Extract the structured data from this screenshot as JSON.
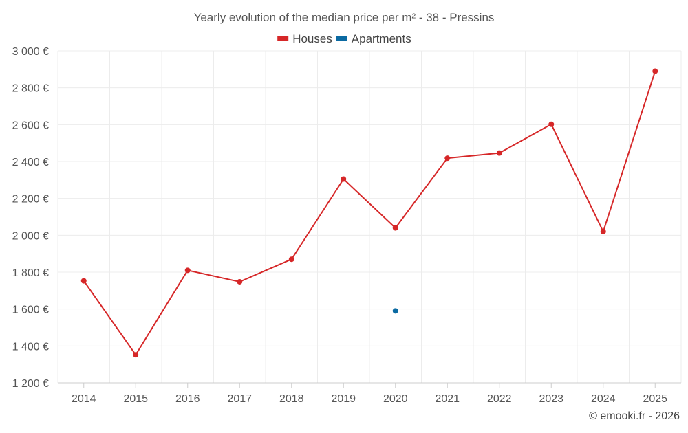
{
  "chart_data": {
    "type": "line",
    "title": "Yearly evolution of the median price per m² - 38 - Pressins",
    "categories": [
      "2014",
      "2015",
      "2016",
      "2017",
      "2018",
      "2019",
      "2020",
      "2021",
      "2022",
      "2023",
      "2024",
      "2025"
    ],
    "series": [
      {
        "name": "Houses",
        "color": "#d62728",
        "values": [
          1753,
          1352,
          1810,
          1748,
          1870,
          2305,
          2040,
          2418,
          2446,
          2602,
          2020,
          2890
        ]
      },
      {
        "name": "Apartments",
        "color": "#0b6aa2",
        "values": [
          null,
          null,
          null,
          null,
          null,
          null,
          1590,
          null,
          null,
          null,
          null,
          null
        ]
      }
    ],
    "ylim": [
      1200,
      3000
    ],
    "yticks": [
      1200,
      1400,
      1600,
      1800,
      2000,
      2200,
      2400,
      2600,
      2800,
      3000
    ],
    "ytick_labels": [
      "1 200 €",
      "1 400 €",
      "1 600 €",
      "1 800 €",
      "2 000 €",
      "2 200 €",
      "2 400 €",
      "2 600 €",
      "2 800 €",
      "3 000 €"
    ],
    "xlabel": "",
    "ylabel": "",
    "grid": true,
    "legend_position": "top-center"
  },
  "credit": "© emooki.fr - 2026"
}
